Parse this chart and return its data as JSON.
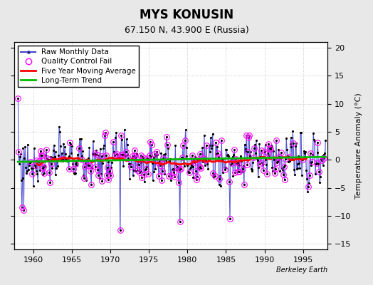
{
  "title": "MYS KONUSIN",
  "subtitle": "67.150 N, 43.900 E (Russia)",
  "ylabel": "Temperature Anomaly (°C)",
  "xlabel_note": "Berkeley Earth",
  "ylim": [
    -16,
    21
  ],
  "yticks": [
    -15,
    -10,
    -5,
    0,
    5,
    10,
    15,
    20
  ],
  "xlim": [
    1957.5,
    1998.2
  ],
  "xticks": [
    1960,
    1965,
    1970,
    1975,
    1980,
    1985,
    1990,
    1995
  ],
  "plot_bg_color": "#ffffff",
  "fig_bg_color": "#e8e8e8",
  "raw_line_color": "#4444cc",
  "raw_dot_color": "#000000",
  "stem_color": "#aaaaee",
  "qc_color": "#ff00ff",
  "moving_avg_color": "#ff0000",
  "trend_color": "#00bb00",
  "title_fontsize": 12,
  "subtitle_fontsize": 9,
  "axis_fontsize": 8,
  "legend_fontsize": 7.5
}
